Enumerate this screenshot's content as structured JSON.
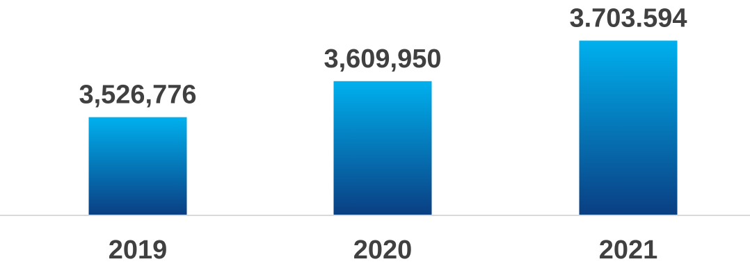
{
  "chart_data": {
    "type": "bar",
    "categories": [
      "2019",
      "2020",
      "2021"
    ],
    "values": [
      3526776,
      3609950,
      3703594
    ],
    "data_labels": [
      "3,526,776",
      "3,609,950",
      "3.703.594"
    ],
    "title": "",
    "xlabel": "",
    "ylabel": "",
    "ylim": [
      3300000,
      3730000
    ],
    "grid": false,
    "legend": "none",
    "colors": {
      "bar_top": "#00b0ee",
      "bar_bottom": "#0a3e82",
      "axis": "#d9d9d9",
      "text": "#404040"
    }
  }
}
